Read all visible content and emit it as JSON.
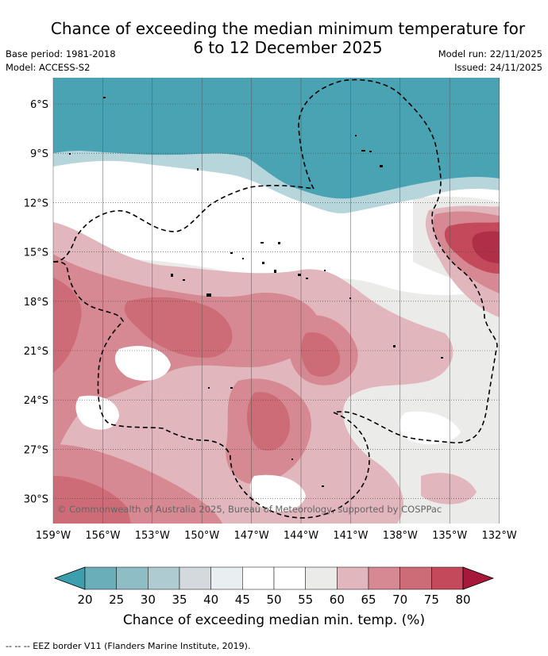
{
  "title_line1": "Chance of exceeding the median minimum temperature for",
  "title_line2": "6 to 12 December 2025",
  "base_period": "Base period: 1981-2018",
  "model": "Model: ACCESS-S2",
  "model_run": "Model run: 22/11/2025",
  "issued": "Issued: 24/11/2025",
  "copyright": "© Commonwealth of Australia 2025, Bureau of Meteorology, supported by COSPPac",
  "lat_labels": [
    "6°S",
    "9°S",
    "12°S",
    "15°S",
    "18°S",
    "21°S",
    "24°S",
    "27°S",
    "30°S"
  ],
  "lon_labels": [
    "159°W",
    "156°W",
    "153°W",
    "150°W",
    "147°W",
    "144°W",
    "141°W",
    "138°W",
    "135°W",
    "132°W"
  ],
  "colorbar": {
    "ticks": [
      "20",
      "25",
      "30",
      "35",
      "40",
      "45",
      "50",
      "55",
      "60",
      "65",
      "70",
      "75",
      "80"
    ],
    "colors": [
      "#3d9fad",
      "#6aaeba",
      "#8ebdc6",
      "#aecbd1",
      "#d3d9dc",
      "#e9eef0",
      "#ffffff",
      "#ffffff",
      "#ebebea",
      "#e2b6bd",
      "#d68992",
      "#cd6b76",
      "#c44a5b",
      "#a8183a"
    ],
    "label": "Chance of exceeding median min. temp. (%)"
  },
  "footnote": "-- -- -- EEZ border V11 (Flanders Marine Institute, 2019).",
  "colors": {
    "teal": "#4aa3b3",
    "white": "#ffffff",
    "grey": "#ebebea",
    "pink1": "#e2b6bd",
    "pink2": "#d68992",
    "pink3": "#cd6b76",
    "red": "#c44a5b",
    "darkred": "#b02e48"
  }
}
